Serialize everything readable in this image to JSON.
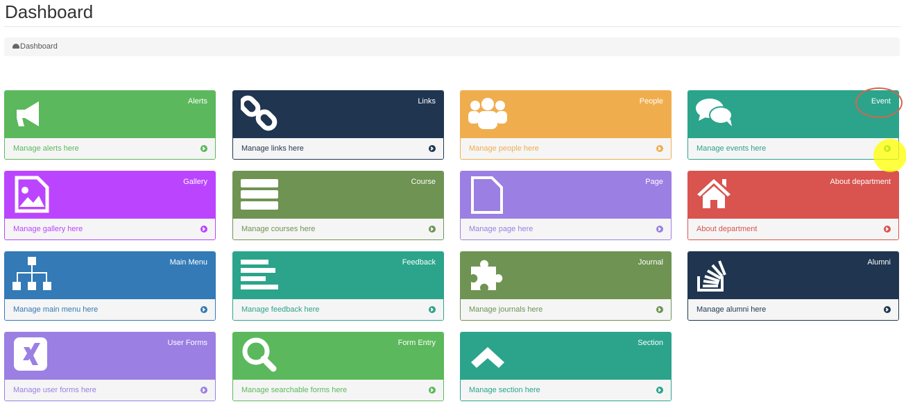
{
  "page": {
    "title": "Dashboard",
    "breadcrumb": "Dashboard",
    "breadcrumb_icon": "dashboard-gauge-icon"
  },
  "cards": [
    {
      "title": "Alerts",
      "link": "Manage alerts here",
      "icon": "bullhorn",
      "color": "#5cb85c"
    },
    {
      "title": "Links",
      "link": "Manage links here",
      "icon": "chain",
      "color": "#1f3550"
    },
    {
      "title": "People",
      "link": "Manage people here",
      "icon": "users",
      "color": "#f0ad4e"
    },
    {
      "title": "Event",
      "link": "Manage events here",
      "icon": "comments",
      "color": "#2ba48b"
    },
    {
      "title": "Gallery",
      "link": "Manage gallery here",
      "icon": "file-image",
      "color": "#bb44ff"
    },
    {
      "title": "Course",
      "link": "Manage courses here",
      "icon": "server",
      "color": "#6f9352"
    },
    {
      "title": "Page",
      "link": "Manage page here",
      "icon": "file",
      "color": "#9b7fe3"
    },
    {
      "title": "About department",
      "link": "About department",
      "icon": "home",
      "color": "#d9534f"
    },
    {
      "title": "Main Menu",
      "link": "Manage main menu here",
      "icon": "sitemap",
      "color": "#337ab7"
    },
    {
      "title": "Feedback",
      "link": "Manage feedback here",
      "icon": "align-left",
      "color": "#2ba48b"
    },
    {
      "title": "Journal",
      "link": "Manage journals here",
      "icon": "puzzle",
      "color": "#6f9352"
    },
    {
      "title": "Alumni",
      "link": "Manage alumni here",
      "icon": "stack-overflow",
      "color": "#1f3550"
    },
    {
      "title": "User Forms",
      "link": "Manage user forms here",
      "icon": "xing",
      "color": "#9b7fe3"
    },
    {
      "title": "Form Entry",
      "link": "Manage searchable forms here",
      "icon": "search",
      "color": "#5cb85c"
    },
    {
      "title": "Section",
      "link": "Manage section here",
      "icon": "chevron-up",
      "color": "#2ba48b"
    }
  ]
}
